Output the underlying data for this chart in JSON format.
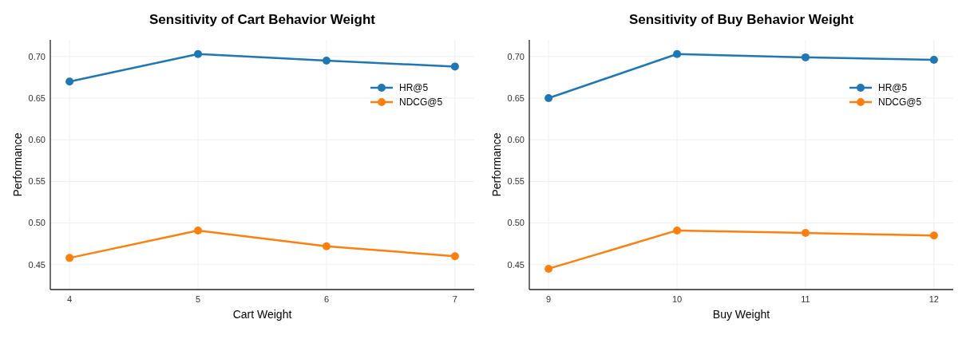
{
  "chart_data": [
    {
      "type": "line",
      "title": "Sensitivity of Cart Behavior Weight",
      "xlabel": "Cart Weight",
      "ylabel": "Performance",
      "x": [
        4,
        5,
        6,
        7
      ],
      "series": [
        {
          "name": "HR@5",
          "color": "#1f77b4",
          "values": [
            0.67,
            0.703,
            0.695,
            0.688
          ]
        },
        {
          "name": "NDCG@5",
          "color": "#ff7f0e",
          "values": [
            0.458,
            0.491,
            0.472,
            0.46
          ]
        }
      ],
      "xlim": [
        3.85,
        7.15
      ],
      "xticks": [
        4,
        5,
        6,
        7
      ],
      "ylim": [
        0.42,
        0.72
      ],
      "yticks": [
        {
          "value": 0.45,
          "label": "0.45"
        },
        {
          "value": 0.5,
          "label": "0.50"
        },
        {
          "value": 0.55,
          "label": "0.55"
        },
        {
          "value": 0.6,
          "label": "0.60"
        },
        {
          "value": 0.65,
          "label": "0.65"
        },
        {
          "value": 0.7,
          "label": "0.70"
        }
      ],
      "grid": true,
      "legend": "top right",
      "marker": "circle",
      "line_style": "solid"
    },
    {
      "type": "line",
      "title": "Sensitivity of Buy Behavior Weight",
      "xlabel": "Buy Weight",
      "ylabel": "Performance",
      "x": [
        9,
        10,
        11,
        12
      ],
      "series": [
        {
          "name": "HR@5",
          "color": "#1f77b4",
          "values": [
            0.65,
            0.703,
            0.699,
            0.696
          ]
        },
        {
          "name": "NDCG@5",
          "color": "#ff7f0e",
          "values": [
            0.445,
            0.491,
            0.488,
            0.485
          ]
        }
      ],
      "xlim": [
        8.85,
        12.15
      ],
      "xticks": [
        9,
        10,
        11,
        12
      ],
      "ylim": [
        0.42,
        0.72
      ],
      "yticks": [
        {
          "value": 0.45,
          "label": "0.45"
        },
        {
          "value": 0.5,
          "label": "0.50"
        },
        {
          "value": 0.55,
          "label": "0.55"
        },
        {
          "value": 0.6,
          "label": "0.60"
        },
        {
          "value": 0.65,
          "label": "0.65"
        },
        {
          "value": 0.7,
          "label": "0.70"
        }
      ],
      "grid": true,
      "legend": "top right",
      "marker": "circle",
      "line_style": "solid"
    }
  ]
}
